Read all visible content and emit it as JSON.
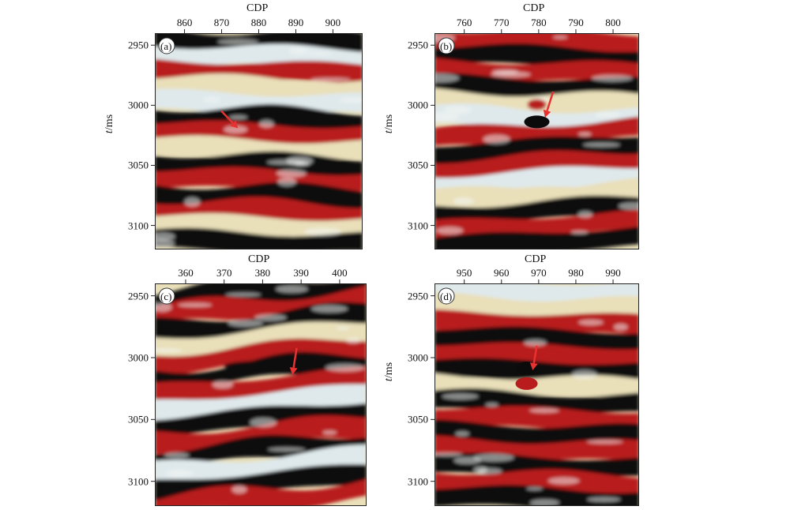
{
  "figure": {
    "x_axis_title": "CDP",
    "y_axis_title_var": "t",
    "y_axis_title_unit": "/ms",
    "y_ticks": [
      "2950",
      "3000",
      "3050",
      "3100"
    ],
    "y_range": [
      2940,
      3120
    ],
    "arrow_color": "#e83232",
    "colors": {
      "red": "#b81c1c",
      "black": "#0b0b0b",
      "bluish_white": "#dfe9ec",
      "cream": "#e9dfb9"
    }
  },
  "panels": [
    {
      "label": "(a)",
      "x_ticks": [
        "860",
        "870",
        "880",
        "890",
        "900"
      ],
      "x_range": [
        852,
        908
      ]
    },
    {
      "label": "(b)",
      "x_ticks": [
        "760",
        "770",
        "780",
        "790",
        "800"
      ],
      "x_range": [
        752,
        807
      ]
    },
    {
      "label": "(c)",
      "x_ticks": [
        "360",
        "370",
        "380",
        "390",
        "400"
      ],
      "x_range": [
        352,
        407
      ]
    },
    {
      "label": "(d)",
      "x_ticks": [
        "950",
        "960",
        "970",
        "980",
        "990"
      ],
      "x_range": [
        942,
        997
      ]
    }
  ]
}
